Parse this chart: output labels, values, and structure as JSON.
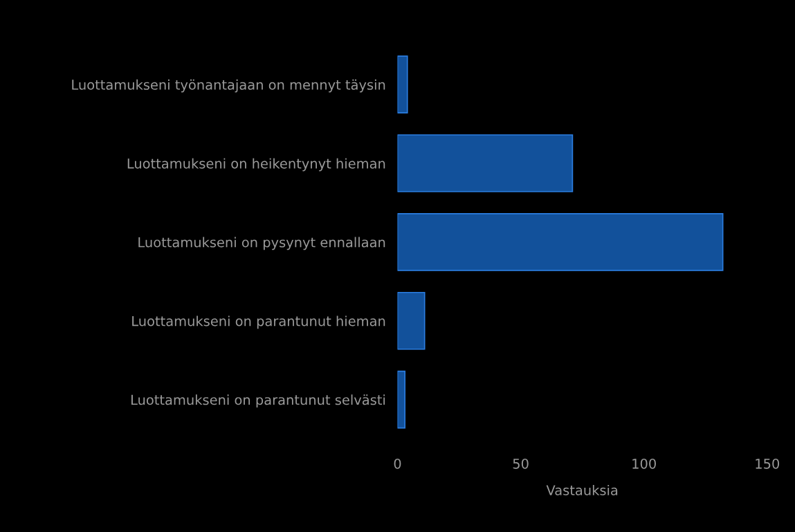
{
  "chart_data": {
    "type": "bar",
    "orientation": "horizontal",
    "xlabel": "Vastauksia",
    "categories": [
      "Luottamukseni työnantajaan on mennyt täysin",
      "Luottamukseni on heikentynyt hieman",
      "Luottamukseni on pysynyt ennallaan",
      "Luottamukseni on parantunut hieman",
      "Luottamukseni on parantunut selvästi"
    ],
    "values": [
      4,
      71,
      132,
      11,
      3
    ],
    "color": "#12519b",
    "xlim": [
      0,
      150
    ],
    "xticks": [
      0,
      50,
      100,
      150
    ],
    "grid": false
  }
}
